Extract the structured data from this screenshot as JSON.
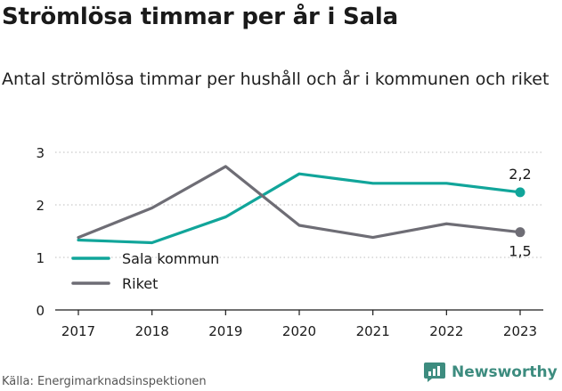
{
  "title": "Strömlösa timmar per år i Sala",
  "subtitle": "Antal strömlösa timmar per hushåll och år i kommunen och riket",
  "source": "Källa: Energimarknadsinspektionen",
  "brand": {
    "name": "Newsworthy",
    "icon": "newsworthy-logo-icon",
    "color": "#3d8c7f"
  },
  "chart_data": {
    "type": "line",
    "x": [
      "2017",
      "2018",
      "2019",
      "2020",
      "2021",
      "2022",
      "2023"
    ],
    "yticks": [
      "0",
      "1",
      "2",
      "3"
    ],
    "ylim": [
      0,
      3
    ],
    "grid": true,
    "legend_position": "bottom-left",
    "series": [
      {
        "name": "Sala kommun",
        "color": "#11a59a",
        "values": [
          1.33,
          1.28,
          1.77,
          2.59,
          2.41,
          2.41,
          2.24
        ],
        "end_label": "2,2"
      },
      {
        "name": "Riket",
        "color": "#6e6d75",
        "values": [
          1.38,
          1.94,
          2.73,
          1.61,
          1.38,
          1.64,
          1.48
        ],
        "end_label": "1,5"
      }
    ]
  }
}
